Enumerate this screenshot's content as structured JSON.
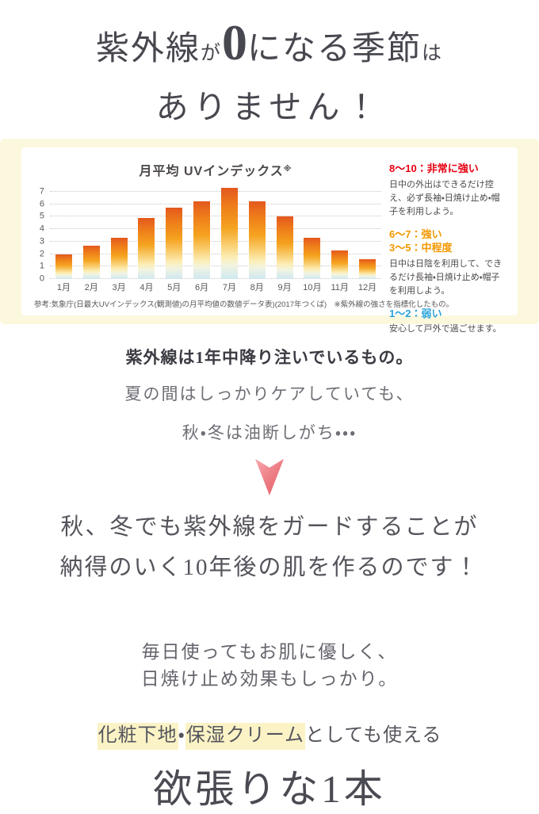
{
  "headline": {
    "seg1": "紫外線",
    "seg2": "が",
    "seg3": "0",
    "seg4": "になる季節",
    "seg5": "は",
    "line2": "ありません！"
  },
  "chart_data": {
    "type": "bar",
    "title": "月平均 UVインデックス",
    "title_note_mark": "※",
    "categories": [
      "1月",
      "2月",
      "3月",
      "4月",
      "5月",
      "6月",
      "7月",
      "8月",
      "9月",
      "10月",
      "11月",
      "12月"
    ],
    "values": [
      2.0,
      2.7,
      3.3,
      4.9,
      5.7,
      6.2,
      7.3,
      6.2,
      5.0,
      3.3,
      2.3,
      1.6
    ],
    "xlabel": "",
    "ylabel": "",
    "ylim": [
      0,
      7.5
    ],
    "yticks": [
      0,
      1,
      2,
      3,
      4,
      5,
      6,
      7
    ],
    "grid": "horizontal-dotted",
    "legend_position": "right",
    "bar_gradient_colors": [
      "#e4581e",
      "#f5a31f",
      "#fcedb4",
      "#cfe8f1"
    ],
    "footnote": "参考:気象庁(日最大UVインデックス(観測値)の月平均値の数値データ表)(2017年つくば)　※紫外線の強さを指標化したもの。",
    "legend": [
      {
        "heading_lines": [
          "8～10：非常に強い"
        ],
        "heading_color": "#e60012",
        "description": "日中の外出はできるだけ控え、必ず長袖・日焼け止め・帽子を利用しよう。"
      },
      {
        "heading_lines": [
          "6～7：強い",
          "3～5：中程度"
        ],
        "heading_color": "#f39800",
        "description": "日中は日陰を利用して、できるだけ長袖・日焼け止め・帽子を利用しよう。"
      },
      {
        "heading_lines": [
          "1～2：弱い"
        ],
        "heading_color": "#29a3dd",
        "description": "安心して戸外で過ごせます。"
      }
    ]
  },
  "sections": {
    "intro_bold": "紫外線は1年中降り注いでいるもの。",
    "intro_line2": "夏の間はしっかりケアしていても、",
    "intro_line3": "秋・冬は油断しがち・・・",
    "claim_line1": "秋、冬でも紫外線をガードすることが",
    "claim_line2_underlined": "納得のいく10年後の肌",
    "claim_line2_rest": "を作るのです！",
    "gentle_line1": "毎日使ってもお肌に優しく、",
    "gentle_line2": "日焼け止め効果もしっかり。",
    "usage_hl1": "化粧下地",
    "usage_sep": "・",
    "usage_hl2": "保湿クリーム",
    "usage_rest": "としても使える",
    "closing": "欲張りな1本"
  },
  "colors": {
    "band_bg": "#fcf8dd",
    "arrow_pink_light": "#f7a8ad",
    "arrow_pink_dark": "#e4555f",
    "underline_pink": "#f4b6ba",
    "highlight_yellow": "#fbf3c6",
    "headline_text": "#47474f"
  }
}
